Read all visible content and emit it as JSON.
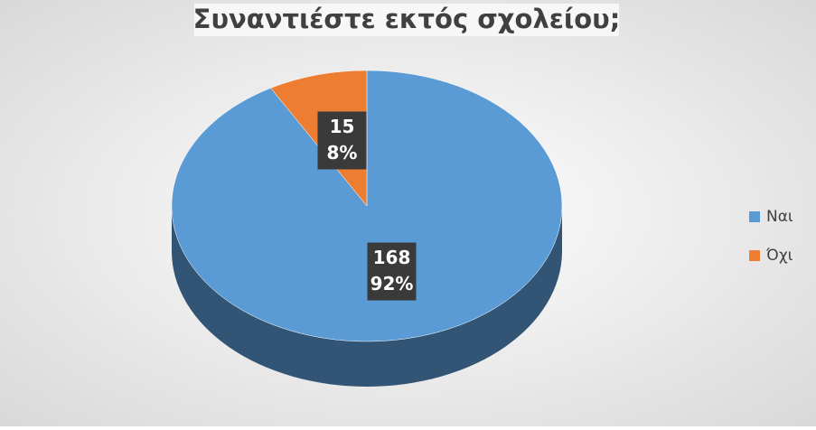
{
  "chart_data": {
    "type": "pie3d",
    "title": "Συναντιέστε εκτός σχολείου;",
    "categories": [
      "Ναι",
      "Όχι"
    ],
    "values": [
      168,
      15
    ],
    "percent_labels": [
      "92%",
      "8%"
    ],
    "colors": [
      "#5b9bd5",
      "#ed7d31"
    ],
    "legend": "right"
  }
}
